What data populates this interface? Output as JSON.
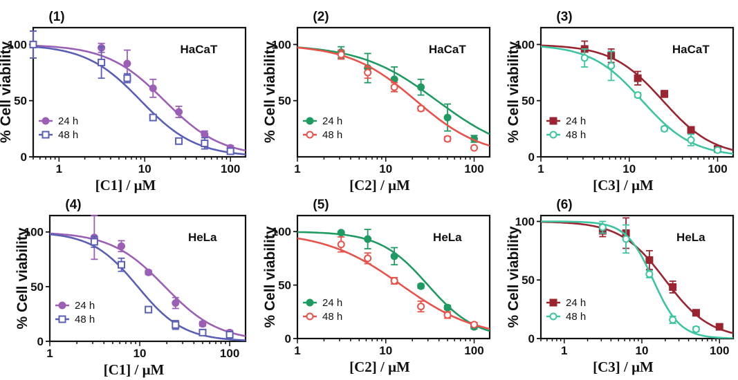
{
  "chart_data": [
    {
      "type": "scatter",
      "label": "(1)",
      "cell_line": "HaCaT",
      "xlabel": "[C1] / μM",
      "ylabel": "% Cell viability",
      "x_scale": "log",
      "xlim": [
        0.5,
        150
      ],
      "ylim": [
        0,
        115
      ],
      "x_ticks": [
        1,
        10,
        100
      ],
      "y_ticks": [
        0,
        50,
        100
      ],
      "legend_position": "bottom-left",
      "series": [
        {
          "name": "24 h",
          "color": "#9b5fb5",
          "marker": "filled-circle",
          "x": [
            0.5,
            3.125,
            6.25,
            12.5,
            25,
            50,
            100
          ],
          "y": [
            100,
            97,
            83,
            61,
            40,
            20,
            8
          ],
          "err": [
            12,
            4,
            12,
            8,
            5,
            3,
            2
          ],
          "fit": {
            "top": 100,
            "bottom": 0,
            "ic50": 17,
            "hill": 1.3
          }
        },
        {
          "name": "48 h",
          "color": "#5a5fb5",
          "marker": "open-square",
          "x": [
            0.5,
            3.125,
            6.25,
            12.5,
            25,
            50,
            100
          ],
          "y": [
            100,
            84,
            70,
            35,
            14,
            12,
            5
          ],
          "err": [
            12,
            14,
            4,
            2,
            2,
            5,
            2
          ],
          "fit": {
            "top": 100,
            "bottom": 0,
            "ic50": 9,
            "hill": 1.35
          }
        }
      ]
    },
    {
      "type": "scatter",
      "label": "(2)",
      "cell_line": "HaCaT",
      "xlabel": "[C2] / μM",
      "ylabel": "% Cell viability",
      "x_scale": "log",
      "xlim": [
        1,
        150
      ],
      "ylim": [
        0,
        115
      ],
      "x_ticks": [
        1,
        10,
        100
      ],
      "y_ticks": [
        50,
        100
      ],
      "legend_position": "bottom-left",
      "series": [
        {
          "name": "24 h",
          "color": "#1f9a62",
          "marker": "filled-circle",
          "x": [
            3.125,
            6.25,
            12.5,
            25,
            50,
            100
          ],
          "y": [
            93,
            79,
            69,
            62,
            35,
            16
          ],
          "err": [
            5,
            13,
            11,
            7,
            12,
            3
          ],
          "fit": {
            "top": 100,
            "bottom": 0,
            "ic50": 38,
            "hill": 1.0
          }
        },
        {
          "name": "48 h",
          "color": "#e8524a",
          "marker": "open-circle",
          "x": [
            3.125,
            6.25,
            12.5,
            25,
            50,
            100
          ],
          "y": [
            91,
            75,
            62,
            43,
            16,
            8
          ],
          "err": [
            4,
            5,
            4,
            2,
            2,
            1
          ],
          "fit": {
            "top": 100,
            "bottom": 0,
            "ic50": 22,
            "hill": 1.15
          }
        }
      ]
    },
    {
      "type": "scatter",
      "label": "(3)",
      "cell_line": "HaCaT",
      "xlabel": "[C3] / μM",
      "ylabel": "% Cell viability",
      "x_scale": "log",
      "xlim": [
        1,
        150
      ],
      "ylim": [
        0,
        115
      ],
      "x_ticks": [
        1,
        10,
        100
      ],
      "y_ticks": [
        0,
        50,
        100
      ],
      "legend_position": "bottom-left",
      "series": [
        {
          "name": "24 h",
          "color": "#9a2430",
          "marker": "filled-square",
          "x": [
            3.125,
            6.25,
            12.5,
            25,
            50,
            100
          ],
          "y": [
            96,
            90,
            70,
            56,
            24,
            7
          ],
          "err": [
            7,
            6,
            6,
            3,
            2,
            2
          ],
          "fit": {
            "top": 100,
            "bottom": 0,
            "ic50": 24,
            "hill": 1.5
          }
        },
        {
          "name": "48 h",
          "color": "#3dc4a0",
          "marker": "open-circle",
          "x": [
            3.125,
            6.25,
            12.5,
            25,
            50,
            100
          ],
          "y": [
            88,
            81,
            55,
            25,
            15,
            6
          ],
          "err": [
            8,
            13,
            2,
            2,
            5,
            2
          ],
          "fit": {
            "top": 100,
            "bottom": 0,
            "ic50": 14,
            "hill": 1.5
          }
        }
      ]
    },
    {
      "type": "scatter",
      "label": "(4)",
      "cell_line": "HeLa",
      "xlabel": "[C1] / μM",
      "ylabel": "% Cell viability",
      "x_scale": "log",
      "xlim": [
        1,
        150
      ],
      "ylim": [
        0,
        115
      ],
      "x_ticks": [
        1,
        10,
        100
      ],
      "y_ticks": [
        0,
        50,
        100
      ],
      "legend_position": "bottom-left",
      "series": [
        {
          "name": "24 h",
          "color": "#9b5fb5",
          "marker": "filled-circle",
          "x": [
            3.125,
            6.25,
            12.5,
            25,
            50,
            100
          ],
          "y": [
            95,
            87,
            63,
            35,
            16,
            8
          ],
          "err": [
            20,
            5,
            2,
            5,
            2,
            2
          ],
          "fit": {
            "top": 100,
            "bottom": 0,
            "ic50": 19,
            "hill": 1.45
          }
        },
        {
          "name": "48 h",
          "color": "#5a5fb5",
          "marker": "open-square",
          "x": [
            3.125,
            6.25,
            12.5,
            25,
            50,
            100
          ],
          "y": [
            91,
            70,
            29,
            15,
            8,
            6
          ],
          "err": [
            5,
            6,
            2,
            4,
            2,
            2
          ],
          "fit": {
            "top": 100,
            "bottom": 0,
            "ic50": 9.5,
            "hill": 1.7
          }
        }
      ]
    },
    {
      "type": "scatter",
      "label": "(5)",
      "cell_line": "HeLa",
      "xlabel": "[C2] / μM",
      "ylabel": "% Cell viability",
      "x_scale": "log",
      "xlim": [
        1,
        150
      ],
      "ylim": [
        0,
        115
      ],
      "x_ticks": [
        1,
        10,
        100
      ],
      "y_ticks": [
        0,
        50,
        100
      ],
      "legend_position": "bottom-left",
      "series": [
        {
          "name": "24 h",
          "color": "#1f9a62",
          "marker": "filled-circle",
          "x": [
            3.125,
            6.25,
            12.5,
            25,
            50,
            100
          ],
          "y": [
            99,
            93,
            77,
            49,
            29,
            11
          ],
          "err": [
            1,
            9,
            8,
            2,
            2,
            2
          ],
          "fit": {
            "top": 100,
            "bottom": 0,
            "ic50": 30,
            "hill": 1.6
          }
        },
        {
          "name": "48 h",
          "color": "#e8524a",
          "marker": "open-circle",
          "x": [
            3.125,
            6.25,
            12.5,
            25,
            50,
            100
          ],
          "y": [
            88,
            75,
            54,
            30,
            22,
            13
          ],
          "err": [
            7,
            5,
            3,
            5,
            3,
            2
          ],
          "fit": {
            "top": 100,
            "bottom": 0,
            "ic50": 15,
            "hill": 1.0
          }
        }
      ]
    },
    {
      "type": "scatter",
      "label": "(6)",
      "cell_line": "HeLa",
      "xlabel": "[C3] / μM",
      "ylabel": "% Cell viability",
      "x_scale": "log",
      "xlim": [
        0.5,
        150
      ],
      "ylim": [
        0,
        105
      ],
      "x_ticks": [
        1,
        10,
        100
      ],
      "y_ticks": [
        0,
        50,
        100
      ],
      "legend_position": "bottom-left",
      "series": [
        {
          "name": "24 h",
          "color": "#9a2430",
          "marker": "filled-square",
          "x": [
            3.125,
            6.25,
            12.5,
            25,
            50,
            100
          ],
          "y": [
            92,
            90,
            67,
            44,
            22,
            10
          ],
          "err": [
            5,
            13,
            8,
            5,
            2,
            2
          ],
          "fit": {
            "top": 100,
            "bottom": 0,
            "ic50": 20,
            "hill": 1.5
          }
        },
        {
          "name": "48 h",
          "color": "#3dc4a0",
          "marker": "open-circle",
          "x": [
            3.125,
            6.25,
            12.5,
            25,
            50
          ],
          "y": [
            95,
            85,
            55,
            16,
            8
          ],
          "err": [
            5,
            12,
            3,
            3,
            2
          ],
          "fit": {
            "top": 100,
            "bottom": 0,
            "ic50": 14,
            "hill": 2.5
          }
        }
      ]
    }
  ]
}
